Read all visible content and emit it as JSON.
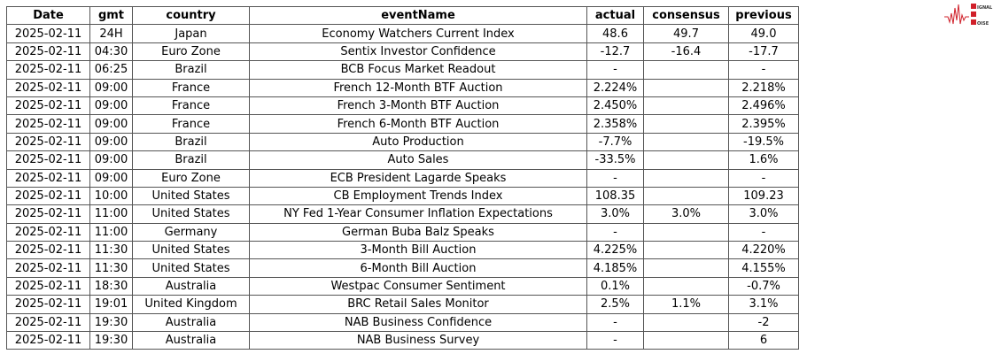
{
  "columns": [
    "Date",
    "gmt",
    "country",
    "eventName",
    "actual",
    "consensus",
    "previous"
  ],
  "rows": [
    [
      "2025-02-11",
      "24H",
      "Japan",
      "Economy Watchers Current Index",
      "48.6",
      "49.7",
      "49.0"
    ],
    [
      "2025-02-11",
      "04:30",
      "Euro Zone",
      "Sentix Investor Confidence",
      "-12.7",
      "-16.4",
      "-17.7"
    ],
    [
      "2025-02-11",
      "06:25",
      "Brazil",
      "BCB Focus Market Readout",
      "-",
      "",
      "-"
    ],
    [
      "2025-02-11",
      "09:00",
      "France",
      "French 12-Month BTF Auction",
      "2.224%",
      "",
      "2.218%"
    ],
    [
      "2025-02-11",
      "09:00",
      "France",
      "French 3-Month BTF Auction",
      "2.450%",
      "",
      "2.496%"
    ],
    [
      "2025-02-11",
      "09:00",
      "France",
      "French 6-Month BTF Auction",
      "2.358%",
      "",
      "2.395%"
    ],
    [
      "2025-02-11",
      "09:00",
      "Brazil",
      "Auto Production",
      "-7.7%",
      "",
      "-19.5%"
    ],
    [
      "2025-02-11",
      "09:00",
      "Brazil",
      "Auto Sales",
      "-33.5%",
      "",
      "1.6%"
    ],
    [
      "2025-02-11",
      "09:00",
      "Euro Zone",
      "ECB President Lagarde Speaks",
      "-",
      "",
      "-"
    ],
    [
      "2025-02-11",
      "10:00",
      "United States",
      "CB Employment Trends Index",
      "108.35",
      "",
      "109.23"
    ],
    [
      "2025-02-11",
      "11:00",
      "United States",
      "NY Fed 1-Year Consumer Inflation Expectations",
      "3.0%",
      "3.0%",
      "3.0%"
    ],
    [
      "2025-02-11",
      "11:00",
      "Germany",
      "German Buba Balz Speaks",
      "-",
      "",
      "-"
    ],
    [
      "2025-02-11",
      "11:30",
      "United States",
      "3-Month Bill Auction",
      "4.225%",
      "",
      "4.220%"
    ],
    [
      "2025-02-11",
      "11:30",
      "United States",
      "6-Month Bill Auction",
      "4.185%",
      "",
      "4.155%"
    ],
    [
      "2025-02-11",
      "18:30",
      "Australia",
      "Westpac Consumer Sentiment",
      "0.1%",
      "",
      "-0.7%"
    ],
    [
      "2025-02-11",
      "19:01",
      "United Kingdom",
      "BRC Retail Sales Monitor",
      "2.5%",
      "1.1%",
      "3.1%"
    ],
    [
      "2025-02-11",
      "19:30",
      "Australia",
      "NAB Business Confidence",
      "-",
      "",
      "-2"
    ],
    [
      "2025-02-11",
      "19:30",
      "Australia",
      "NAB Business Survey",
      "-",
      "",
      "6"
    ]
  ],
  "logo": {
    "text": "SIGNAL 2 NOISE",
    "color": "#d0202a"
  }
}
